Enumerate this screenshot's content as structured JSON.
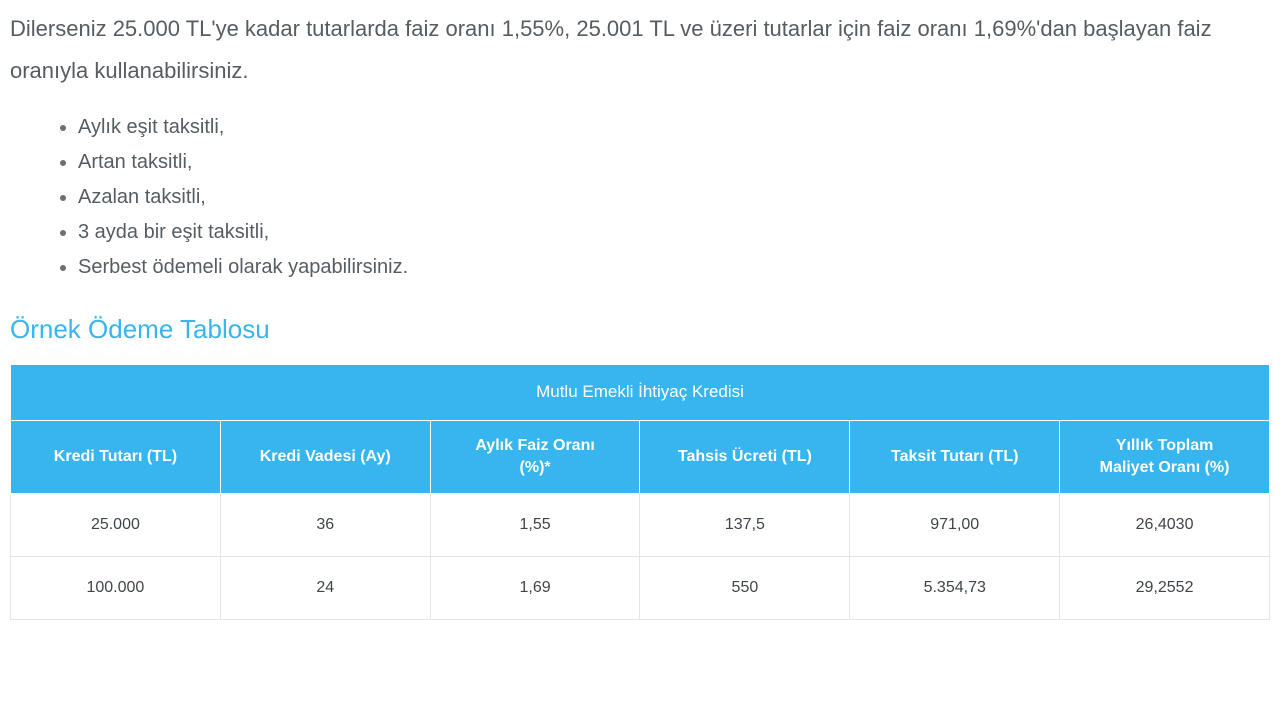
{
  "intro_paragraph": "Dilerseniz 25.000 TL'ye kadar tutarlarda faiz oranı 1,55%, 25.001 TL ve üzeri tutarlar için faiz oranı 1,69%'dan başlayan faiz oranıyla kullanabilirsiniz.",
  "options": {
    "items": [
      "Aylık eşit taksitli,",
      "Artan taksitli,",
      "Azalan taksitli,",
      "3 ayda bir eşit taksitli,",
      "Serbest ödemeli olarak yapabilirsiniz."
    ]
  },
  "section_heading": "Örnek Ödeme Tablosu",
  "table": {
    "type": "table",
    "title": "Mutlu Emekli İhtiyaç Kredisi",
    "header_bg_color": "#36b5ef",
    "header_text_color": "#ffffff",
    "border_color": "#e3e5e7",
    "header_border_color": "#ffffff",
    "body_text_color": "#3f454a",
    "header_fontsize_pt": 12,
    "body_fontsize_pt": 12,
    "columns": [
      {
        "label": "Kredi Tutarı (TL)"
      },
      {
        "label": "Kredi Vadesi (Ay)"
      },
      {
        "label_line1": "Aylık Faiz Oranı",
        "label_line2": "(%)*"
      },
      {
        "label": "Tahsis Ücreti (TL)"
      },
      {
        "label": "Taksit Tutarı (TL)"
      },
      {
        "label_line1": "Yıllık Toplam",
        "label_line2": "Maliyet Oranı (%)"
      }
    ],
    "rows": [
      [
        "25.000",
        "36",
        "1,55",
        "137,5",
        "971,00",
        "26,4030"
      ],
      [
        "100.000",
        "24",
        "1,69",
        "550",
        "5.354,73",
        "29,2552"
      ]
    ]
  },
  "colors": {
    "body_text": "#555d63",
    "heading": "#36b5ef",
    "background": "#ffffff"
  }
}
